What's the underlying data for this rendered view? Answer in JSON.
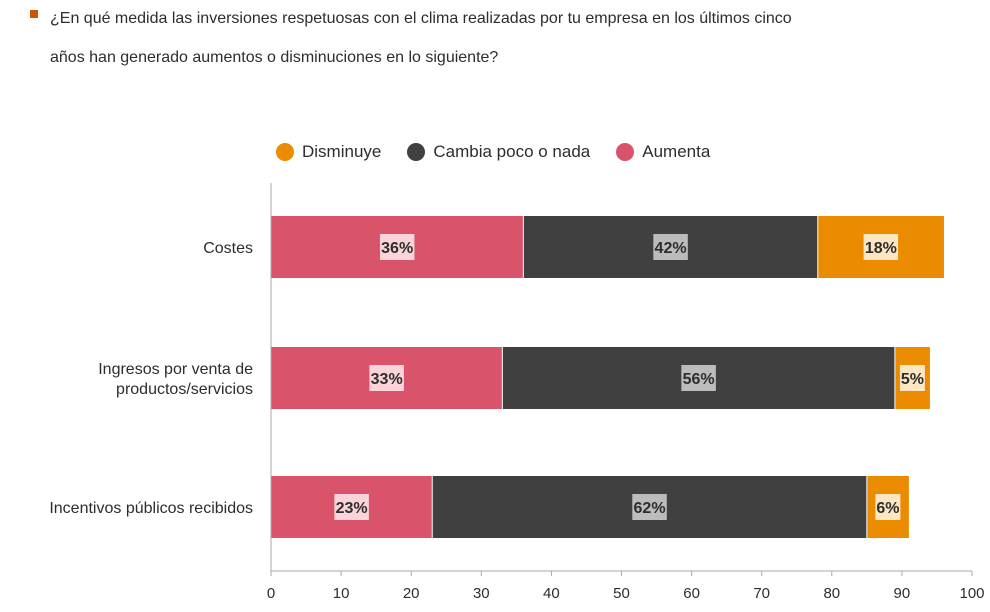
{
  "title": {
    "line1": "¿En qué medida las inversiones respetuosas con el clima realizadas por tu empresa en los últimos cinco",
    "line2": "años han generado aumentos o disminuciones en lo siguiente?",
    "bullet_color": "#d35400"
  },
  "chart_data": {
    "type": "bar",
    "orientation": "horizontal",
    "stacked": true,
    "categories": [
      "Costes",
      "Ingresos por venta de productos/servicios",
      "Incentivos públicos recibidos"
    ],
    "category_lines": [
      [
        "Costes"
      ],
      [
        "Ingresos por venta de",
        "productos/servicios"
      ],
      [
        "Incentivos públicos recibidos"
      ]
    ],
    "series": [
      {
        "name": "Aumenta",
        "color": "#d9536b",
        "values": [
          36,
          33,
          23
        ],
        "labels": [
          "36%",
          "33%",
          "23%"
        ]
      },
      {
        "name": "Cambia poco o nada",
        "color": "#404040",
        "values": [
          42,
          56,
          62
        ],
        "labels": [
          "42%",
          "56%",
          "62%"
        ]
      },
      {
        "name": "Disminuye",
        "color": "#eb8c00",
        "values": [
          18,
          5,
          6
        ],
        "labels": [
          "18%",
          "5%",
          "6%"
        ]
      }
    ],
    "legend_order": [
      "Disminuye",
      "Cambia poco o nada",
      "Aumenta"
    ],
    "legend_position": "top",
    "xlim": [
      0,
      100
    ],
    "xticks": [
      "0",
      "10",
      "20",
      "30",
      "40",
      "50",
      "60",
      "70",
      "80",
      "90",
      "100"
    ],
    "grid": false
  }
}
